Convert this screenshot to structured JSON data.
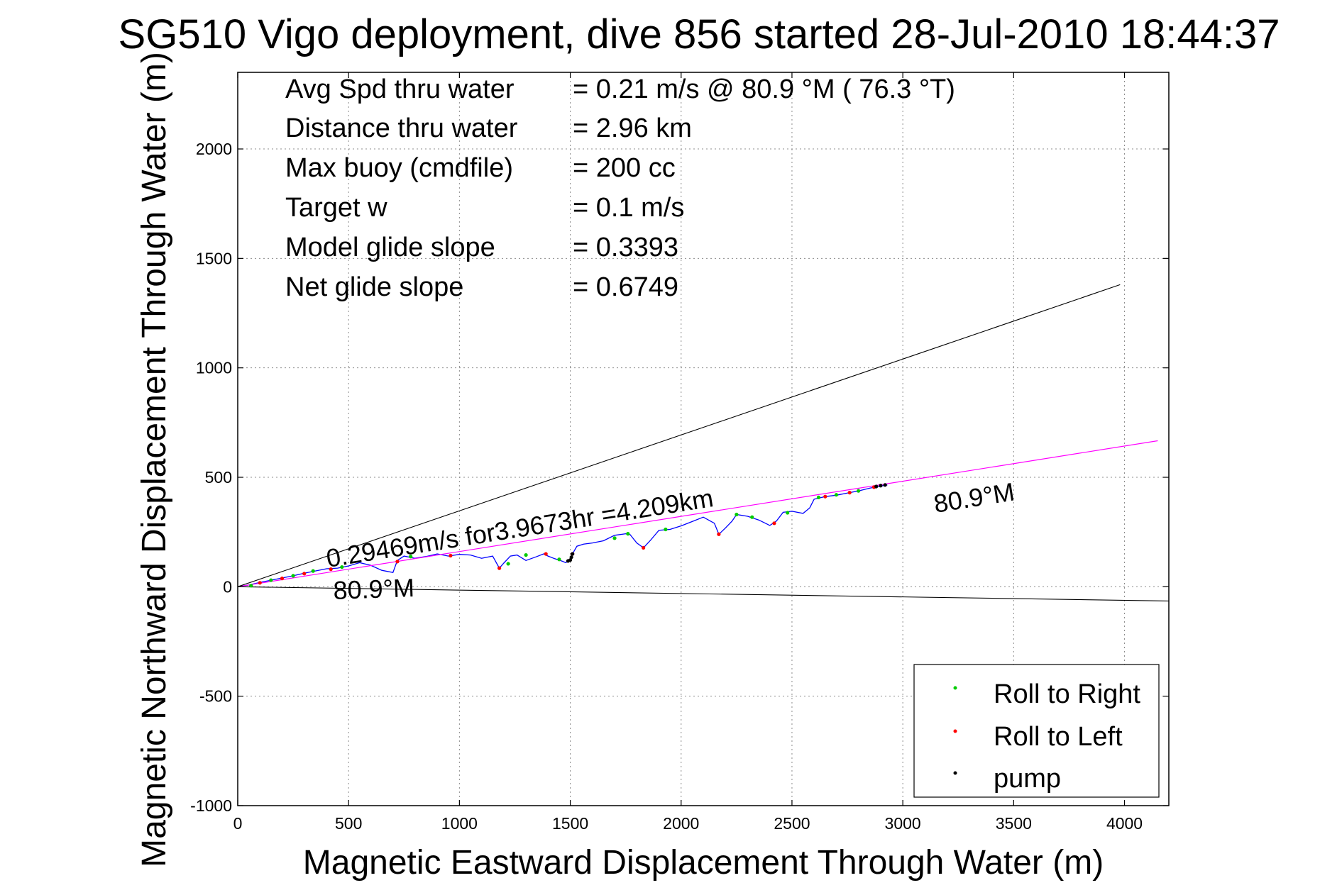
{
  "chart_data": {
    "type": "line",
    "title": "SG510 Vigo deployment, dive 856 started 28-Jul-2010 18:44:37",
    "xlabel": "Magnetic Eastward Displacement Through Water (m)",
    "ylabel": "Magnetic Northward Displacement Through Water (m)",
    "xlim": [
      0,
      4200
    ],
    "ylim": [
      -1000,
      2350
    ],
    "xticks": [
      0,
      500,
      1000,
      1500,
      2000,
      2500,
      3000,
      3500,
      4000
    ],
    "yticks": [
      -1000,
      -500,
      0,
      500,
      1000,
      1500,
      2000
    ],
    "xtick_labels": [
      "0",
      "500",
      "1000",
      "1500",
      "2000",
      "2500",
      "3000",
      "3500",
      "4000"
    ],
    "ytick_labels": [
      "-1000",
      "-500",
      "0",
      "500",
      "1000",
      "1500",
      "2000"
    ],
    "grid": true,
    "legend_position": "bottom-right",
    "colors": {
      "track": "#0000ff",
      "heading_line": "#ff00ff",
      "bounds": "#000000",
      "roll_right": "#00cc00",
      "roll_left": "#ff0000",
      "pump": "#000000"
    },
    "info_lines": [
      {
        "label": "Avg Spd thru water",
        "value": "=  0.21 m/s @  80.9 °M ( 76.3 °T)"
      },
      {
        "label": "Distance thru water",
        "value": "=  2.96 km"
      },
      {
        "label": "Max buoy (cmdfile)",
        "value": "= 200 cc"
      },
      {
        "label": "Target w",
        "value": "= 0.1 m/s"
      },
      {
        "label": "Model glide slope",
        "value": "= 0.3393"
      },
      {
        "label": "Net glide slope",
        "value": "= 0.6749"
      }
    ],
    "annotations": {
      "speed_text": "0.29469m/s for3.9673hr =4.209km",
      "heading_upper": "80.9°M",
      "heading_lower": "80.9°M"
    },
    "series": [
      {
        "name": "track",
        "x": [
          0,
          50,
          100,
          150,
          200,
          250,
          300,
          350,
          400,
          450,
          500,
          550,
          600,
          650,
          700,
          720,
          750,
          800,
          850,
          900,
          950,
          1000,
          1050,
          1100,
          1150,
          1180,
          1200,
          1230,
          1260,
          1300,
          1350,
          1380,
          1400,
          1430,
          1460,
          1480,
          1500,
          1510,
          1530,
          1560,
          1600,
          1650,
          1700,
          1750,
          1770,
          1800,
          1830,
          1860,
          1900,
          1950,
          2000,
          2050,
          2100,
          2150,
          2170,
          2200,
          2230,
          2250,
          2300,
          2350,
          2380,
          2400,
          2430,
          2460,
          2500,
          2550,
          2580,
          2600,
          2650,
          2700,
          2750,
          2800,
          2850,
          2900,
          2930
        ],
        "y": [
          0,
          8,
          20,
          30,
          40,
          50,
          62,
          72,
          82,
          85,
          95,
          110,
          98,
          75,
          65,
          120,
          140,
          130,
          138,
          150,
          140,
          148,
          145,
          130,
          140,
          85,
          108,
          140,
          145,
          120,
          138,
          150,
          140,
          128,
          118,
          110,
          125,
          150,
          185,
          195,
          200,
          210,
          235,
          242,
          238,
          200,
          178,
          210,
          258,
          262,
          278,
          298,
          318,
          290,
          240,
          268,
          300,
          330,
          322,
          305,
          290,
          280,
          300,
          340,
          345,
          335,
          360,
          400,
          412,
          418,
          428,
          438,
          450,
          460,
          465
        ]
      },
      {
        "name": "heading-line",
        "x": [
          0,
          4150
        ],
        "y": [
          0,
          667
        ]
      },
      {
        "name": "upper-bound",
        "x": [
          0,
          3980
        ],
        "y": [
          0,
          1380
        ]
      },
      {
        "name": "lower-bound",
        "x": [
          0,
          4200
        ],
        "y": [
          0,
          -65
        ]
      }
    ],
    "markers": {
      "roll_right": {
        "name": "Roll to Right",
        "x": [
          60,
          150,
          250,
          340,
          470,
          780,
          1220,
          1300,
          1450,
          1700,
          1760,
          1930,
          2250,
          2320,
          2480,
          2620,
          2700,
          2800
        ],
        "y": [
          5,
          30,
          50,
          72,
          90,
          138,
          105,
          145,
          125,
          222,
          242,
          262,
          330,
          318,
          338,
          408,
          420,
          438
        ]
      },
      "roll_left": {
        "name": "Roll to Left",
        "x": [
          100,
          200,
          300,
          420,
          720,
          960,
          1180,
          1390,
          1510,
          1830,
          2170,
          2420,
          2650,
          2760,
          2870
        ],
        "y": [
          18,
          38,
          60,
          80,
          115,
          142,
          85,
          150,
          150,
          178,
          240,
          290,
          412,
          430,
          455
        ]
      },
      "pump": {
        "name": "pump",
        "x": [
          1490,
          1500,
          1505,
          1510,
          2880,
          2900,
          2920
        ],
        "y": [
          118,
          122,
          135,
          150,
          458,
          462,
          465
        ]
      }
    },
    "legend": [
      "Roll to Right",
      "Roll to Left",
      "pump"
    ]
  }
}
